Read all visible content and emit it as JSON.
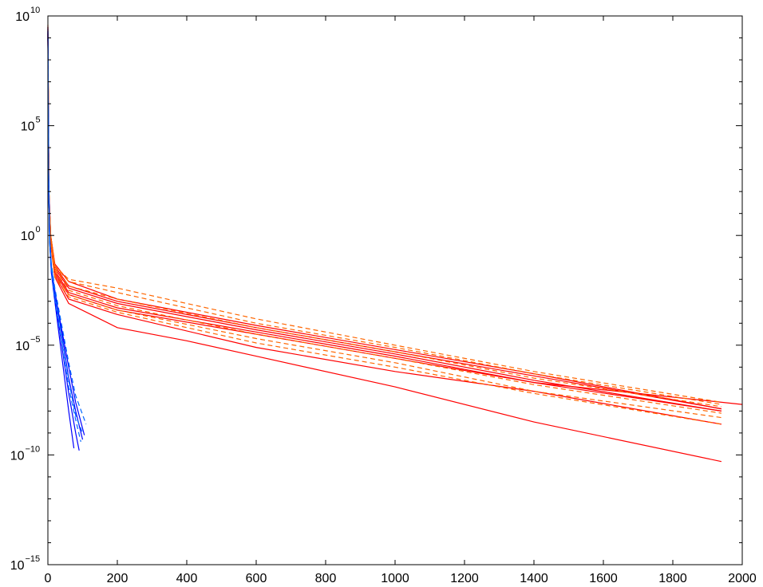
{
  "chart_data": {
    "type": "line",
    "title": "",
    "xlabel": "",
    "ylabel": "",
    "xscale": "linear",
    "yscale": "log",
    "xlim": [
      0,
      2000
    ],
    "ylim_exponent": [
      -15,
      10
    ],
    "grid": false,
    "legend": "none",
    "x_ticks": [
      {
        "value": 0,
        "label": "0"
      },
      {
        "value": 200,
        "label": "200"
      },
      {
        "value": 400,
        "label": "400"
      },
      {
        "value": 600,
        "label": "600"
      },
      {
        "value": 800,
        "label": "800"
      },
      {
        "value": 1000,
        "label": "1000"
      },
      {
        "value": 1200,
        "label": "1200"
      },
      {
        "value": 1400,
        "label": "1400"
      },
      {
        "value": 1600,
        "label": "1600"
      },
      {
        "value": 1800,
        "label": "1800"
      },
      {
        "value": 2000,
        "label": "2000"
      }
    ],
    "y_ticks": [
      {
        "exponent": 10,
        "base": "10",
        "sup": "10"
      },
      {
        "exponent": 5,
        "base": "10",
        "sup": "5"
      },
      {
        "exponent": 0,
        "base": "10",
        "sup": "0"
      },
      {
        "exponent": -5,
        "base": "10",
        "sup": "−5"
      },
      {
        "exponent": -10,
        "base": "10",
        "sup": "−10"
      },
      {
        "exponent": -15,
        "base": "10",
        "sup": "−15"
      }
    ],
    "y_minor_exponents": [
      9,
      8,
      7,
      6,
      4,
      3,
      2,
      1,
      -1,
      -2,
      -3,
      -4,
      -6,
      -7,
      -8,
      -9,
      -11,
      -12,
      -13,
      -14
    ],
    "series": [
      {
        "color": "#ff0000",
        "dash": "solid",
        "x": [
          0,
          3,
          8,
          20,
          60,
          200,
          600,
          1000,
          1400,
          1940
        ],
        "log10_y": [
          9.5,
          2,
          0,
          -1.3,
          -2.1,
          -2.9,
          -4.1,
          -5.2,
          -6.3,
          -7.9
        ]
      },
      {
        "color": "#ff0000",
        "dash": "solid",
        "x": [
          0,
          3,
          8,
          20,
          60,
          200,
          600,
          1000,
          1400,
          1940
        ],
        "log10_y": [
          9.3,
          2,
          0,
          -1.4,
          -2.3,
          -3.0,
          -4.2,
          -5.3,
          -6.4,
          -7.9
        ]
      },
      {
        "color": "#ff0000",
        "dash": "solid",
        "x": [
          0,
          3,
          8,
          20,
          60,
          200,
          600,
          1000,
          1400,
          1940
        ],
        "log10_y": [
          9.2,
          1.8,
          -0.2,
          -1.5,
          -2.4,
          -3.1,
          -4.3,
          -5.4,
          -6.6,
          -8.0
        ]
      },
      {
        "color": "#ff0000",
        "dash": "solid",
        "x": [
          0,
          3,
          8,
          20,
          60,
          200,
          600,
          1000,
          1400,
          1940
        ],
        "log10_y": [
          9.4,
          1.9,
          -0.1,
          -1.6,
          -2.6,
          -3.3,
          -4.4,
          -5.5,
          -6.7,
          -8.0
        ]
      },
      {
        "color": "#ff0000",
        "dash": "solid",
        "x": [
          0,
          3,
          8,
          20,
          60,
          200,
          600,
          1000,
          1400,
          2000
        ],
        "log10_y": [
          9.1,
          1.7,
          -0.3,
          -1.7,
          -2.7,
          -3.4,
          -4.5,
          -5.6,
          -6.7,
          -7.7
        ]
      },
      {
        "color": "#ff0000",
        "dash": "solid",
        "x": [
          0,
          3,
          8,
          20,
          60,
          200,
          600,
          1000,
          1400,
          1940
        ],
        "log10_y": [
          9.2,
          1.8,
          -0.2,
          -1.8,
          -2.9,
          -3.6,
          -5.1,
          -6.2,
          -7.1,
          -8.6
        ]
      },
      {
        "color": "#ff0000",
        "dash": "solid",
        "x": [
          0,
          3,
          8,
          20,
          60,
          200,
          400,
          600,
          1000,
          1400,
          1940
        ],
        "log10_y": [
          9.0,
          1.6,
          -0.4,
          -1.9,
          -3.1,
          -4.2,
          -4.8,
          -5.5,
          -6.9,
          -8.5,
          -10.3
        ]
      },
      {
        "color": "#ff6600",
        "dash": "dashed",
        "x": [
          0,
          3,
          8,
          20,
          60,
          200,
          600,
          1000,
          1400,
          1940
        ],
        "log10_y": [
          9.6,
          2,
          0,
          -1.4,
          -2.0,
          -2.4,
          -3.8,
          -5.0,
          -6.2,
          -7.6
        ]
      },
      {
        "color": "#ff6600",
        "dash": "dashed",
        "x": [
          0,
          3,
          8,
          20,
          60,
          200,
          600,
          1000,
          1400,
          1940
        ],
        "log10_y": [
          9.5,
          2,
          0,
          -1.4,
          -2.1,
          -2.6,
          -4.0,
          -5.1,
          -6.3,
          -7.7
        ]
      },
      {
        "color": "#ff6600",
        "dash": "dashed",
        "x": [
          0,
          3,
          8,
          20,
          60,
          200,
          600,
          1000,
          1400,
          1940
        ],
        "log10_y": [
          9.4,
          1.9,
          -0.1,
          -1.5,
          -2.3,
          -2.9,
          -4.2,
          -5.3,
          -6.5,
          -7.8
        ]
      },
      {
        "color": "#ff6600",
        "dash": "dashed",
        "x": [
          0,
          3,
          8,
          20,
          60,
          200,
          600,
          1000,
          1400,
          1940
        ],
        "log10_y": [
          9.3,
          1.8,
          -0.2,
          -1.6,
          -2.5,
          -3.2,
          -4.5,
          -5.6,
          -6.8,
          -8.1
        ]
      },
      {
        "color": "#ff6600",
        "dash": "dashed",
        "x": [
          0,
          3,
          8,
          20,
          60,
          200,
          600,
          1000,
          1400,
          1940
        ],
        "log10_y": [
          9.2,
          1.7,
          -0.3,
          -1.8,
          -2.7,
          -3.4,
          -4.7,
          -5.8,
          -7.1,
          -8.3
        ]
      },
      {
        "color": "#ff6600",
        "dash": "dashed",
        "x": [
          0,
          3,
          8,
          20,
          60,
          200,
          600,
          1000,
          1400,
          1940
        ],
        "log10_y": [
          9.1,
          1.7,
          -0.3,
          -1.9,
          -2.8,
          -3.5,
          -4.9,
          -6.0,
          -7.2,
          -8.6
        ]
      },
      {
        "color": "#0000ff",
        "dash": "solid",
        "x": [
          0,
          2,
          5,
          10,
          20,
          40,
          60,
          80,
          100
        ],
        "log10_y": [
          9.5,
          3,
          0,
          -1.5,
          -2.5,
          -4.5,
          -6.5,
          -8.0,
          -9.3
        ]
      },
      {
        "color": "#0000ff",
        "dash": "solid",
        "x": [
          0,
          2,
          5,
          10,
          20,
          40,
          60,
          80,
          90
        ],
        "log10_y": [
          9.3,
          2.8,
          -0.1,
          -1.6,
          -2.8,
          -5.0,
          -7.2,
          -9.0,
          -9.8
        ]
      },
      {
        "color": "#0000ff",
        "dash": "solid",
        "x": [
          0,
          2,
          5,
          10,
          20,
          40,
          60,
          80,
          105
        ],
        "log10_y": [
          9.2,
          2.7,
          -0.2,
          -1.4,
          -2.6,
          -4.3,
          -6.0,
          -7.6,
          -9.1
        ]
      },
      {
        "color": "#0000ff",
        "dash": "solid",
        "x": [
          0,
          2,
          5,
          10,
          20,
          40,
          60,
          75
        ],
        "log10_y": [
          9.0,
          2.5,
          -0.3,
          -1.7,
          -3.0,
          -5.5,
          -8.0,
          -9.7
        ]
      },
      {
        "color": "#0066ff",
        "dash": "dashed",
        "x": [
          0,
          2,
          5,
          10,
          20,
          40,
          60,
          80,
          110
        ],
        "log10_y": [
          9.4,
          2.9,
          -0.1,
          -1.3,
          -2.4,
          -4.1,
          -5.8,
          -7.3,
          -8.6
        ]
      },
      {
        "color": "#0066ff",
        "dash": "dashed",
        "x": [
          0,
          2,
          5,
          10,
          20,
          40,
          60,
          80,
          100
        ],
        "log10_y": [
          9.3,
          2.8,
          -0.2,
          -1.5,
          -2.7,
          -4.6,
          -6.6,
          -8.2,
          -9.0
        ]
      },
      {
        "color": "#0066ff",
        "dash": "dashed",
        "x": [
          0,
          2,
          5,
          10,
          20,
          40,
          60,
          80,
          95
        ],
        "log10_y": [
          9.1,
          2.6,
          -0.3,
          -1.6,
          -2.9,
          -4.9,
          -6.9,
          -8.4,
          -9.4
        ]
      }
    ]
  }
}
